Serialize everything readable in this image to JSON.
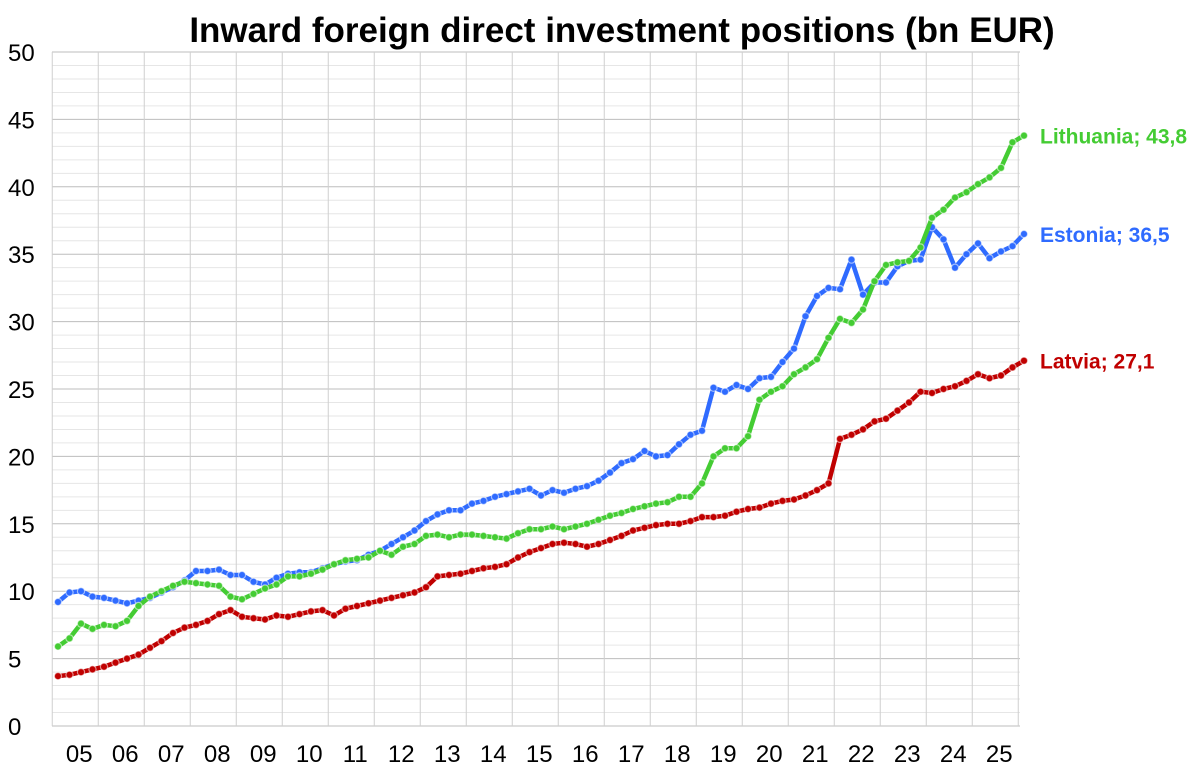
{
  "chart_data": {
    "type": "line",
    "title": "Inward foreign direct investment positions (bn EUR)",
    "xlabel": "",
    "ylabel": "",
    "ylim": [
      0,
      50
    ],
    "yticks": [
      0,
      5,
      10,
      15,
      20,
      25,
      30,
      35,
      40,
      45,
      50
    ],
    "xticks": [
      "05",
      "06",
      "07",
      "08",
      "09",
      "10",
      "11",
      "12",
      "13",
      "14",
      "15",
      "16",
      "17",
      "18",
      "19",
      "20",
      "21",
      "22",
      "23",
      "24",
      "25"
    ],
    "x_start": "2005-Q1",
    "x_end": "2025-Q2",
    "grid": true,
    "series": [
      {
        "name": "Estonia",
        "color": "#2f6bff",
        "end_label": "Estonia; 36,5",
        "values": [
          9.2,
          9.9,
          10.0,
          9.6,
          9.5,
          9.3,
          9.1,
          9.3,
          9.5,
          9.9,
          10.3,
          10.8,
          11.5,
          11.5,
          11.6,
          11.2,
          11.2,
          10.7,
          10.5,
          11.0,
          11.3,
          11.4,
          11.4,
          11.7,
          12.0,
          12.2,
          12.3,
          12.7,
          13.0,
          13.5,
          14.0,
          14.5,
          15.2,
          15.7,
          16.0,
          16.0,
          16.5,
          16.7,
          17.0,
          17.2,
          17.4,
          17.6,
          17.1,
          17.5,
          17.3,
          17.6,
          17.8,
          18.2,
          18.8,
          19.5,
          19.8,
          20.4,
          20.0,
          20.1,
          20.9,
          21.6,
          21.9,
          25.1,
          24.8,
          25.3,
          25.0,
          25.8,
          25.9,
          27.0,
          28.0,
          30.4,
          31.9,
          32.5,
          32.4,
          34.6,
          32.0,
          32.9,
          32.9,
          34.1,
          34.5,
          34.6,
          37.0,
          36.1,
          34.0,
          35.0,
          35.8,
          34.7,
          35.2,
          35.6,
          36.5
        ]
      },
      {
        "name": "Lithuania",
        "color": "#44cc33",
        "end_label": "Lithuania; 43,8",
        "values": [
          5.9,
          6.5,
          7.6,
          7.2,
          7.5,
          7.4,
          7.8,
          8.9,
          9.6,
          10.0,
          10.4,
          10.7,
          10.6,
          10.5,
          10.4,
          9.6,
          9.4,
          9.8,
          10.2,
          10.5,
          11.1,
          11.1,
          11.3,
          11.6,
          12.0,
          12.3,
          12.4,
          12.5,
          13.0,
          12.7,
          13.3,
          13.5,
          14.1,
          14.2,
          14.0,
          14.2,
          14.2,
          14.1,
          14.0,
          13.9,
          14.3,
          14.6,
          14.6,
          14.8,
          14.6,
          14.8,
          15.0,
          15.3,
          15.6,
          15.8,
          16.1,
          16.3,
          16.5,
          16.6,
          17.0,
          17.0,
          18.0,
          20.0,
          20.6,
          20.6,
          21.5,
          24.2,
          24.8,
          25.2,
          26.1,
          26.6,
          27.2,
          28.8,
          30.2,
          29.9,
          30.9,
          33.0,
          34.2,
          34.4,
          34.5,
          35.5,
          37.7,
          38.3,
          39.2,
          39.6,
          40.2,
          40.7,
          41.4,
          43.3,
          43.8
        ]
      },
      {
        "name": "Latvia",
        "color": "#c00000",
        "end_label": "Latvia; 27,1",
        "values": [
          3.7,
          3.8,
          4.0,
          4.2,
          4.4,
          4.7,
          5.0,
          5.3,
          5.8,
          6.3,
          6.9,
          7.3,
          7.5,
          7.8,
          8.3,
          8.6,
          8.1,
          8.0,
          7.9,
          8.2,
          8.1,
          8.3,
          8.5,
          8.6,
          8.2,
          8.7,
          8.9,
          9.1,
          9.3,
          9.5,
          9.7,
          9.9,
          10.3,
          11.1,
          11.2,
          11.3,
          11.5,
          11.7,
          11.8,
          12.0,
          12.5,
          12.9,
          13.2,
          13.5,
          13.6,
          13.5,
          13.3,
          13.5,
          13.8,
          14.1,
          14.5,
          14.7,
          14.9,
          15.0,
          15.0,
          15.2,
          15.5,
          15.5,
          15.6,
          15.9,
          16.1,
          16.2,
          16.5,
          16.7,
          16.8,
          17.1,
          17.5,
          18.0,
          21.3,
          21.6,
          22.0,
          22.6,
          22.8,
          23.4,
          24.0,
          24.8,
          24.7,
          25.0,
          25.2,
          25.6,
          26.1,
          25.8,
          26.0,
          26.6,
          27.1
        ]
      }
    ]
  }
}
